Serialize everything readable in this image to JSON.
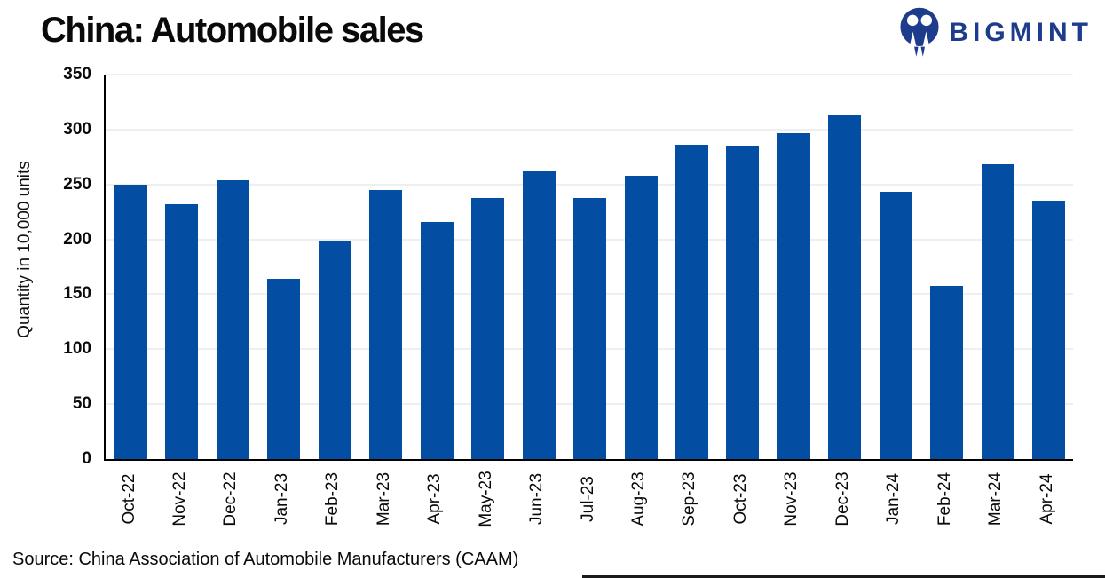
{
  "header": {
    "title": "China: Automobile sales",
    "logo_text": "BIGMINT"
  },
  "footer": {
    "source": "Source: China Association of Automobile Manufacturers (CAAM)"
  },
  "chart_data": {
    "type": "bar",
    "title": "China: Automobile sales",
    "xlabel": "",
    "ylabel": "Quantity in 10,000 units",
    "ylim": [
      0,
      350
    ],
    "ytick_interval": 50,
    "yticks": [
      0,
      50,
      100,
      150,
      200,
      250,
      300,
      350
    ],
    "grid": true,
    "legend_position": "none",
    "bar_color": "#034EA2",
    "categories": [
      "Oct-22",
      "Nov-22",
      "Dec-22",
      "Jan-23",
      "Feb-23",
      "Mar-23",
      "Apr-23",
      "May-23",
      "Jun-23",
      "Jul-23",
      "Aug-23",
      "Sep-23",
      "Oct-23",
      "Nov-23",
      "Dec-23",
      "Jan-24",
      "Feb-24",
      "Mar-24",
      "Apr-24"
    ],
    "values": [
      250,
      232,
      254,
      164,
      198,
      245,
      216,
      238,
      262,
      238,
      258,
      286,
      285,
      297,
      314,
      243,
      158,
      268,
      235
    ]
  },
  "colors": {
    "bar": "#034EA2",
    "logo_navy": "#1E3C8C",
    "gridline": "#EFEFEF",
    "axis": "#000000"
  }
}
